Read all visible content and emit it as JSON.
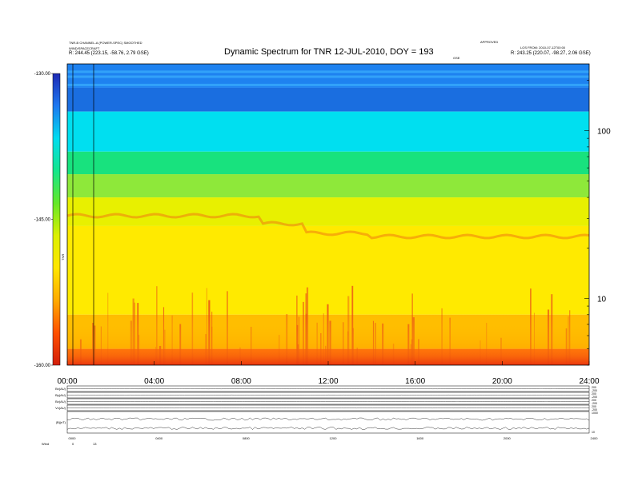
{
  "header": {
    "title": "Dynamic Spectrum for TNR 12-JUL-2010, DOY = 193",
    "left_line1": "TNR-B  CHANNEL-A (POWER-SPEC) SMOOTHED",
    "left_line2": "WIND/SPACECRAFT",
    "left_line3": "R:   244.45 (223.15, -58.76, 2.79 GSE)",
    "right_line1": "APPROVED",
    "right_line2": "LOS FROM: 2010-07-12T00:00",
    "right_line3": "R:   243.25 (220.07, -98.27, 2.06 GSE)",
    "center_label": "GSE"
  },
  "chart_data": [
    {
      "type": "heatmap",
      "title": "Dynamic Spectrum for TNR 12-JUL-2010, DOY = 193",
      "xlabel": "",
      "ylabel": "",
      "x_ticks": [
        "00:00",
        "04:00",
        "08:00",
        "12:00",
        "16:00",
        "20:00",
        "24:00"
      ],
      "x_range_hours": [
        0,
        24
      ],
      "y_scale": "log",
      "y_ticks": [
        10,
        100
      ],
      "y_range_khz": [
        4,
        250
      ],
      "colorbar": {
        "ticks": [
          "-130.00",
          "-145.00",
          "-160.00"
        ],
        "range": [
          -160,
          -130
        ],
        "label": "TNR",
        "colors": [
          "#1e2ab4",
          "#1e78f0",
          "#00dcf0",
          "#14e68c",
          "#64e828",
          "#dcf000",
          "#ffe600",
          "#ffaa00",
          "#ff5000",
          "#d21e0a"
        ]
      },
      "bands": [
        {
          "range_khz": [
            180,
            250
          ],
          "color": "#1e82f0"
        },
        {
          "range_khz": [
            130,
            180
          ],
          "color": "#1a6ee0"
        },
        {
          "range_khz": [
            75,
            130
          ],
          "color": "#00dff0"
        },
        {
          "range_khz": [
            55,
            75
          ],
          "color": "#18e27e"
        },
        {
          "range_khz": [
            40,
            55
          ],
          "color": "#8ee83a"
        },
        {
          "range_khz": [
            27,
            40
          ],
          "color": "#e8f000"
        },
        {
          "range_khz": [
            8,
            27
          ],
          "color": "#ffea00"
        },
        {
          "range_khz": [
            5,
            8
          ],
          "color": "#ffbb00"
        },
        {
          "range_khz": [
            4,
            5
          ],
          "color": "#ff5a10"
        }
      ]
    },
    {
      "type": "line",
      "title": "",
      "rows": [
        {
          "label": "Bx(AU)",
          "right_top": "200",
          "right_bottom": "-200"
        },
        {
          "label": "By(AU)",
          "right_top": "200",
          "right_bottom": "-200"
        },
        {
          "label": "Bz(AU)",
          "right_top": "200",
          "right_bottom": "-200"
        },
        {
          "label": "Vx(AU)",
          "right_top": "200",
          "right_bottom": "-200"
        },
        {
          "label": "|B|(nT)",
          "right_top": "1000",
          "right_bottom": "10"
        }
      ],
      "x_ticks": [
        "0000",
        "0400",
        "0800",
        "1200",
        "1600",
        "2000",
        "2400"
      ],
      "footer_label": "Wind",
      "footer_values": [
        "0",
        "13"
      ]
    }
  ]
}
